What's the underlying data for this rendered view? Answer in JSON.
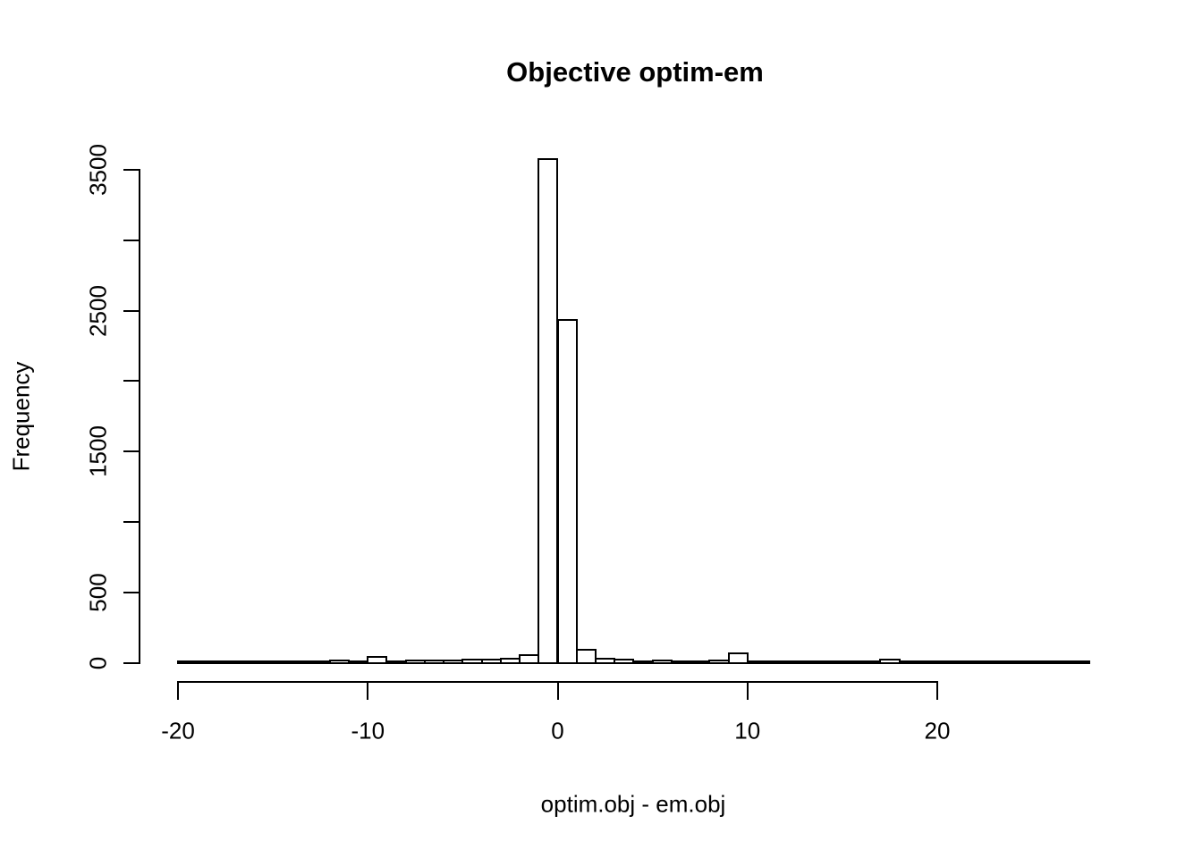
{
  "chart_data": {
    "type": "bar",
    "subtype": "histogram",
    "title": "Objective optim-em",
    "xlabel": "optim.obj - em.obj",
    "ylabel": "Frequency",
    "xlim": [
      -20,
      28
    ],
    "ylim": [
      0,
      3500
    ],
    "grid": false,
    "legend": null,
    "bar_fill": "#ffffff",
    "bar_stroke": "#000000",
    "bin_width": 1,
    "bin_starts": [
      -20,
      -19,
      -18,
      -17,
      -16,
      -15,
      -14,
      -13,
      -12,
      -11,
      -10,
      -9,
      -8,
      -7,
      -6,
      -5,
      -4,
      -3,
      -2,
      -1,
      0,
      1,
      2,
      3,
      4,
      5,
      6,
      7,
      8,
      9,
      10,
      11,
      12,
      13,
      14,
      15,
      16,
      17,
      18,
      19,
      20,
      21,
      22,
      23,
      24,
      25,
      26,
      27
    ],
    "counts": [
      1,
      1,
      1,
      1,
      1,
      2,
      2,
      3,
      8,
      3,
      38,
      4,
      10,
      8,
      10,
      14,
      18,
      25,
      45,
      3570,
      2430,
      85,
      25,
      14,
      4,
      10,
      3,
      3,
      12,
      62,
      3,
      2,
      2,
      2,
      2,
      2,
      2,
      18,
      2,
      1,
      1,
      1,
      1,
      1,
      1,
      1,
      1,
      1
    ],
    "x_ticks": [
      {
        "value": -20,
        "label": "-20"
      },
      {
        "value": -10,
        "label": "-10"
      },
      {
        "value": 0,
        "label": "0"
      },
      {
        "value": 10,
        "label": "10"
      },
      {
        "value": 20,
        "label": "20"
      }
    ],
    "y_ticks": [
      {
        "value": 0,
        "label": "0"
      },
      {
        "value": 500,
        "label": "500"
      },
      {
        "value": 1000,
        "label": ""
      },
      {
        "value": 1500,
        "label": "1500"
      },
      {
        "value": 2000,
        "label": ""
      },
      {
        "value": 2500,
        "label": "2500"
      },
      {
        "value": 3000,
        "label": ""
      },
      {
        "value": 3500,
        "label": "3500"
      }
    ]
  }
}
